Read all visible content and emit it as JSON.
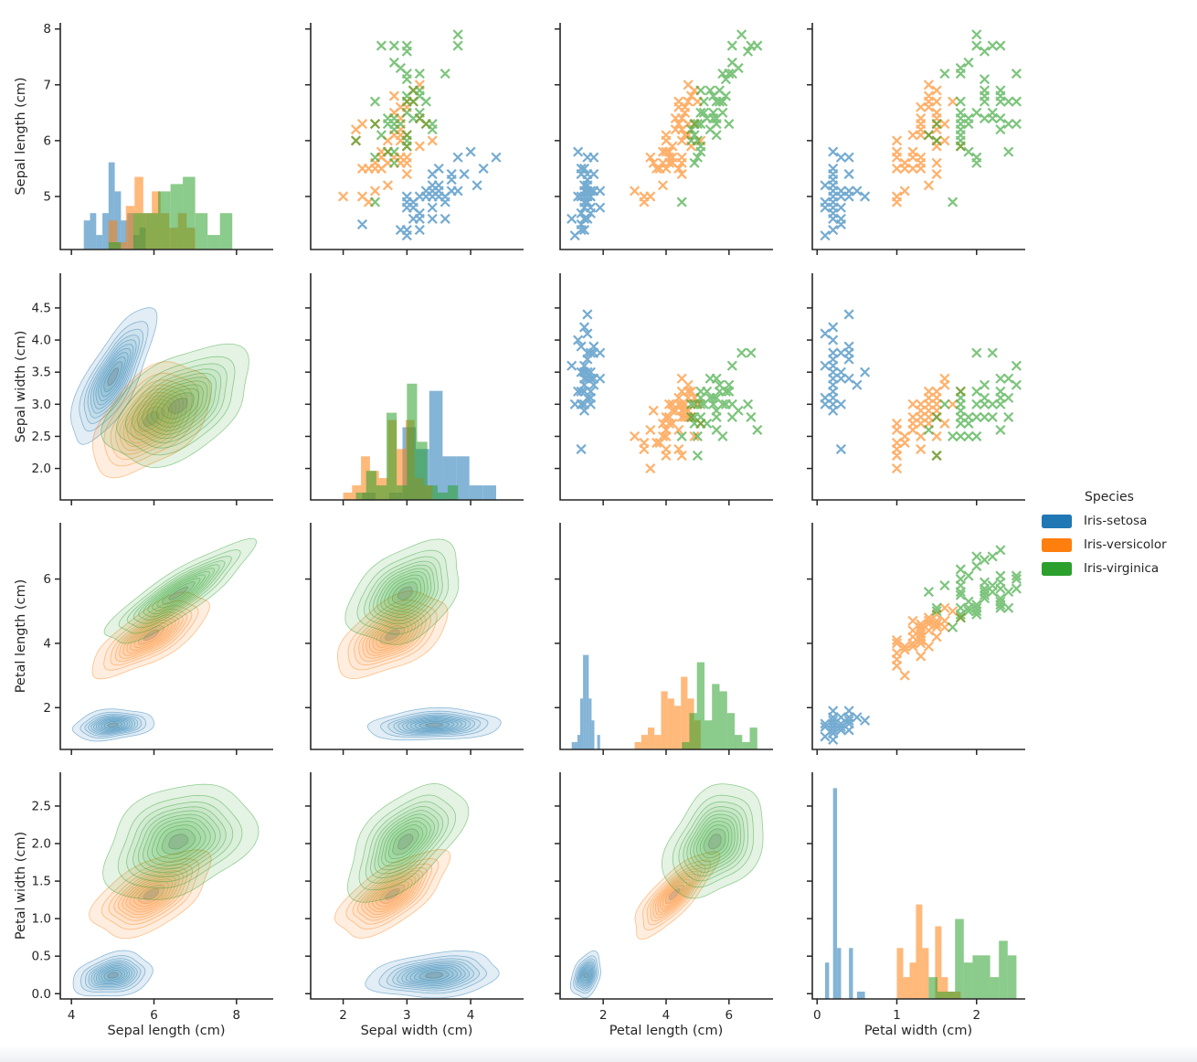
{
  "chart_data": {
    "type": "scatter",
    "subtype": "pairplot",
    "dataset": "Iris",
    "variables": [
      "Sepal length (cm)",
      "Sepal width (cm)",
      "Petal length (cm)",
      "Petal width (cm)"
    ],
    "grid": {
      "diagonal": "hist",
      "upper_triangle": "scatter",
      "lower_triangle": "kde",
      "rows": 4,
      "cols": 4
    },
    "marker": "x",
    "hist_bins_per_species": 10,
    "legend": {
      "title": "Species",
      "position": "right",
      "entries": [
        {
          "label": "Iris-setosa",
          "color": "#1f77b4"
        },
        {
          "label": "Iris-versicolor",
          "color": "#ff7f0e"
        },
        {
          "label": "Iris-virginica",
          "color": "#2ca02c"
        }
      ]
    },
    "axes": {
      "x_lims": [
        [
          3.73,
          8.89
        ],
        [
          1.49,
          4.83
        ],
        [
          0.63,
          7.4
        ],
        [
          -0.06,
          2.61
        ]
      ],
      "y_lims": [
        [
          4.05,
          8.11
        ],
        [
          1.51,
          5.04
        ],
        [
          0.7,
          7.75
        ],
        [
          -0.07,
          2.95
        ]
      ],
      "x_ticks": [
        [
          4,
          6,
          8
        ],
        [
          2,
          3,
          4
        ],
        [
          2,
          4,
          6
        ],
        [
          0,
          1,
          2
        ]
      ],
      "x_tick_labels": [
        [
          "4",
          "6",
          "8"
        ],
        [
          "2",
          "3",
          "4"
        ],
        [
          "2",
          "4",
          "6"
        ],
        [
          "0",
          "1",
          "2"
        ]
      ],
      "y_ticks": [
        [
          5,
          6,
          7,
          8
        ],
        [
          2.0,
          2.5,
          3.0,
          3.5,
          4.0,
          4.5
        ],
        [
          2,
          4,
          6
        ],
        [
          0.0,
          0.5,
          1.0,
          1.5,
          2.0,
          2.5
        ]
      ],
      "y_tick_labels": [
        [
          "5",
          "6",
          "7",
          "8"
        ],
        [
          "2.0",
          "2.5",
          "3.0",
          "3.5",
          "4.0",
          "4.5"
        ],
        [
          "2",
          "4",
          "6"
        ],
        [
          "0.0",
          "0.5",
          "1.0",
          "1.5",
          "2.0",
          "2.5"
        ]
      ],
      "grid_lines": false
    },
    "series": [
      {
        "name": "Iris-setosa",
        "color": "#1f77b4",
        "points": [
          [
            5.1,
            3.5,
            1.4,
            0.2
          ],
          [
            4.9,
            3.0,
            1.4,
            0.2
          ],
          [
            4.7,
            3.2,
            1.3,
            0.2
          ],
          [
            4.6,
            3.1,
            1.5,
            0.2
          ],
          [
            5.0,
            3.6,
            1.4,
            0.2
          ],
          [
            5.4,
            3.9,
            1.7,
            0.4
          ],
          [
            4.6,
            3.4,
            1.4,
            0.3
          ],
          [
            5.0,
            3.4,
            1.5,
            0.2
          ],
          [
            4.4,
            2.9,
            1.4,
            0.2
          ],
          [
            4.9,
            3.1,
            1.5,
            0.1
          ],
          [
            5.4,
            3.7,
            1.5,
            0.2
          ],
          [
            4.8,
            3.4,
            1.6,
            0.2
          ],
          [
            4.8,
            3.0,
            1.4,
            0.1
          ],
          [
            4.3,
            3.0,
            1.1,
            0.1
          ],
          [
            5.8,
            4.0,
            1.2,
            0.2
          ],
          [
            5.7,
            4.4,
            1.5,
            0.4
          ],
          [
            5.4,
            3.9,
            1.3,
            0.4
          ],
          [
            5.1,
            3.5,
            1.4,
            0.3
          ],
          [
            5.7,
            3.8,
            1.7,
            0.3
          ],
          [
            5.1,
            3.8,
            1.5,
            0.3
          ],
          [
            5.4,
            3.4,
            1.7,
            0.2
          ],
          [
            5.1,
            3.7,
            1.5,
            0.4
          ],
          [
            4.6,
            3.6,
            1.0,
            0.2
          ],
          [
            5.1,
            3.3,
            1.7,
            0.5
          ],
          [
            4.8,
            3.4,
            1.9,
            0.2
          ],
          [
            5.0,
            3.0,
            1.6,
            0.2
          ],
          [
            5.0,
            3.4,
            1.6,
            0.4
          ],
          [
            5.2,
            3.5,
            1.5,
            0.2
          ],
          [
            5.2,
            3.4,
            1.4,
            0.2
          ],
          [
            4.7,
            3.2,
            1.6,
            0.2
          ],
          [
            4.8,
            3.1,
            1.6,
            0.2
          ],
          [
            5.4,
            3.4,
            1.5,
            0.4
          ],
          [
            5.2,
            4.1,
            1.5,
            0.1
          ],
          [
            5.5,
            4.2,
            1.4,
            0.2
          ],
          [
            4.9,
            3.1,
            1.5,
            0.2
          ],
          [
            5.0,
            3.2,
            1.2,
            0.2
          ],
          [
            5.5,
            3.5,
            1.3,
            0.2
          ],
          [
            4.9,
            3.6,
            1.4,
            0.1
          ],
          [
            4.4,
            3.0,
            1.3,
            0.2
          ],
          [
            5.1,
            3.4,
            1.5,
            0.2
          ],
          [
            5.0,
            3.5,
            1.3,
            0.3
          ],
          [
            4.5,
            2.3,
            1.3,
            0.3
          ],
          [
            4.4,
            3.2,
            1.3,
            0.2
          ],
          [
            5.0,
            3.5,
            1.6,
            0.6
          ],
          [
            5.1,
            3.8,
            1.9,
            0.4
          ],
          [
            4.8,
            3.0,
            1.4,
            0.3
          ],
          [
            5.1,
            3.8,
            1.6,
            0.2
          ],
          [
            4.6,
            3.2,
            1.4,
            0.2
          ],
          [
            5.3,
            3.7,
            1.5,
            0.2
          ],
          [
            5.0,
            3.3,
            1.4,
            0.2
          ]
        ]
      },
      {
        "name": "Iris-versicolor",
        "color": "#ff7f0e",
        "points": [
          [
            7.0,
            3.2,
            4.7,
            1.4
          ],
          [
            6.4,
            3.2,
            4.5,
            1.5
          ],
          [
            6.9,
            3.1,
            4.9,
            1.5
          ],
          [
            5.5,
            2.3,
            4.0,
            1.3
          ],
          [
            6.5,
            2.8,
            4.6,
            1.5
          ],
          [
            5.7,
            2.8,
            4.5,
            1.3
          ],
          [
            6.3,
            3.3,
            4.7,
            1.6
          ],
          [
            4.9,
            2.4,
            3.3,
            1.0
          ],
          [
            6.6,
            2.9,
            4.6,
            1.3
          ],
          [
            5.2,
            2.7,
            3.9,
            1.4
          ],
          [
            5.0,
            2.0,
            3.5,
            1.0
          ],
          [
            5.9,
            3.0,
            4.2,
            1.5
          ],
          [
            6.0,
            2.2,
            4.0,
            1.0
          ],
          [
            6.1,
            2.9,
            4.7,
            1.4
          ],
          [
            5.6,
            2.9,
            3.6,
            1.3
          ],
          [
            6.7,
            3.1,
            4.4,
            1.4
          ],
          [
            5.6,
            3.0,
            4.5,
            1.5
          ],
          [
            5.8,
            2.7,
            4.1,
            1.0
          ],
          [
            6.2,
            2.2,
            4.5,
            1.5
          ],
          [
            5.6,
            2.5,
            3.9,
            1.1
          ],
          [
            5.9,
            3.2,
            4.8,
            1.8
          ],
          [
            6.1,
            2.8,
            4.0,
            1.3
          ],
          [
            6.3,
            2.5,
            4.9,
            1.5
          ],
          [
            6.1,
            2.8,
            4.7,
            1.2
          ],
          [
            6.4,
            2.9,
            4.3,
            1.3
          ],
          [
            6.6,
            3.0,
            4.4,
            1.4
          ],
          [
            6.8,
            2.8,
            4.8,
            1.4
          ],
          [
            6.7,
            3.0,
            5.0,
            1.7
          ],
          [
            6.0,
            2.9,
            4.5,
            1.5
          ],
          [
            5.7,
            2.6,
            3.5,
            1.0
          ],
          [
            5.5,
            2.4,
            3.8,
            1.1
          ],
          [
            5.5,
            2.4,
            3.7,
            1.0
          ],
          [
            5.8,
            2.7,
            3.9,
            1.2
          ],
          [
            6.0,
            2.7,
            5.1,
            1.6
          ],
          [
            5.4,
            3.0,
            4.5,
            1.5
          ],
          [
            6.0,
            3.4,
            4.5,
            1.6
          ],
          [
            6.7,
            3.1,
            4.7,
            1.5
          ],
          [
            6.3,
            2.3,
            4.4,
            1.3
          ],
          [
            5.6,
            3.0,
            4.1,
            1.3
          ],
          [
            5.5,
            2.5,
            4.0,
            1.3
          ],
          [
            5.5,
            2.6,
            4.4,
            1.2
          ],
          [
            6.1,
            3.0,
            4.6,
            1.4
          ],
          [
            5.8,
            2.6,
            4.0,
            1.2
          ],
          [
            5.0,
            2.3,
            3.3,
            1.0
          ],
          [
            5.6,
            2.7,
            4.2,
            1.3
          ],
          [
            5.7,
            3.0,
            4.2,
            1.2
          ],
          [
            5.7,
            2.9,
            4.2,
            1.3
          ],
          [
            6.2,
            2.9,
            4.3,
            1.3
          ],
          [
            5.1,
            2.5,
            3.0,
            1.1
          ],
          [
            5.7,
            2.8,
            4.1,
            1.3
          ]
        ]
      },
      {
        "name": "Iris-virginica",
        "color": "#2ca02c",
        "points": [
          [
            6.3,
            3.3,
            6.0,
            2.5
          ],
          [
            5.8,
            2.7,
            5.1,
            1.9
          ],
          [
            7.1,
            3.0,
            5.9,
            2.1
          ],
          [
            6.3,
            2.9,
            5.6,
            1.8
          ],
          [
            6.5,
            3.0,
            5.8,
            2.2
          ],
          [
            7.6,
            3.0,
            6.6,
            2.1
          ],
          [
            4.9,
            2.5,
            4.5,
            1.7
          ],
          [
            7.3,
            2.9,
            6.3,
            1.8
          ],
          [
            6.7,
            2.5,
            5.8,
            1.8
          ],
          [
            7.2,
            3.6,
            6.1,
            2.5
          ],
          [
            6.5,
            3.2,
            5.1,
            2.0
          ],
          [
            6.4,
            2.7,
            5.3,
            1.9
          ],
          [
            6.8,
            3.0,
            5.5,
            2.1
          ],
          [
            5.7,
            2.5,
            5.0,
            2.0
          ],
          [
            5.8,
            2.8,
            5.1,
            2.4
          ],
          [
            6.4,
            3.2,
            5.3,
            2.3
          ],
          [
            6.5,
            3.0,
            5.5,
            1.8
          ],
          [
            7.7,
            3.8,
            6.7,
            2.2
          ],
          [
            7.7,
            2.6,
            6.9,
            2.3
          ],
          [
            6.0,
            2.2,
            5.0,
            1.5
          ],
          [
            6.9,
            3.2,
            5.7,
            2.3
          ],
          [
            5.6,
            2.8,
            4.9,
            2.0
          ],
          [
            7.7,
            2.8,
            6.7,
            2.0
          ],
          [
            6.3,
            2.7,
            4.9,
            1.8
          ],
          [
            6.7,
            3.3,
            5.7,
            2.1
          ],
          [
            7.2,
            3.2,
            6.0,
            1.8
          ],
          [
            6.2,
            2.8,
            4.8,
            1.8
          ],
          [
            6.1,
            3.0,
            4.9,
            1.8
          ],
          [
            6.4,
            2.8,
            5.6,
            2.1
          ],
          [
            7.2,
            3.0,
            5.8,
            1.6
          ],
          [
            7.4,
            2.8,
            6.1,
            1.9
          ],
          [
            7.9,
            3.8,
            6.4,
            2.0
          ],
          [
            6.4,
            2.8,
            5.6,
            2.2
          ],
          [
            6.3,
            2.8,
            5.1,
            1.5
          ],
          [
            6.1,
            2.6,
            5.6,
            1.4
          ],
          [
            7.7,
            3.0,
            6.1,
            2.3
          ],
          [
            6.3,
            3.4,
            5.6,
            2.4
          ],
          [
            6.4,
            3.1,
            5.5,
            1.8
          ],
          [
            6.0,
            3.0,
            4.8,
            1.8
          ],
          [
            6.9,
            3.1,
            5.4,
            2.1
          ],
          [
            6.7,
            3.1,
            5.6,
            2.4
          ],
          [
            6.9,
            3.1,
            5.1,
            2.3
          ],
          [
            5.8,
            2.7,
            5.1,
            1.9
          ],
          [
            6.8,
            3.2,
            5.9,
            2.3
          ],
          [
            6.7,
            3.3,
            5.7,
            2.5
          ],
          [
            6.7,
            3.0,
            5.2,
            2.3
          ],
          [
            6.3,
            2.5,
            5.0,
            1.9
          ],
          [
            6.5,
            3.0,
            5.2,
            2.0
          ],
          [
            6.2,
            3.4,
            5.4,
            2.3
          ],
          [
            5.9,
            3.0,
            5.1,
            1.8
          ]
        ]
      }
    ]
  }
}
